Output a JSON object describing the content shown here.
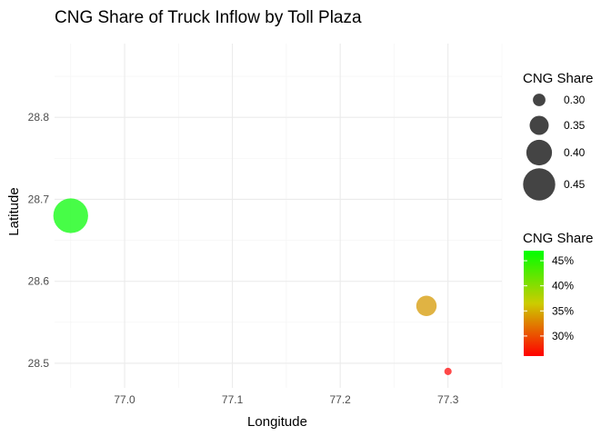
{
  "chart_data": {
    "type": "scatter",
    "title": "CNG Share of Truck Inflow by Toll Plaza",
    "xlabel": "Longitude",
    "ylabel": "Latitude",
    "xlim": [
      76.935,
      77.35
    ],
    "ylim": [
      28.47,
      28.89
    ],
    "x_ticks": [
      77.0,
      77.1,
      77.2,
      77.3
    ],
    "x_tick_labels": [
      "77.0",
      "77.1",
      "77.2",
      "77.3"
    ],
    "y_ticks": [
      28.5,
      28.6,
      28.7,
      28.8
    ],
    "y_tick_labels": [
      "28.5",
      "28.6",
      "28.7",
      "28.8"
    ],
    "grid": true,
    "points": [
      {
        "x": 76.95,
        "y": 28.68,
        "cng_share": 0.47,
        "color": "#1efd1e"
      },
      {
        "x": 77.28,
        "y": 28.57,
        "cng_share": 0.36,
        "color": "#d9a21a"
      },
      {
        "x": 77.3,
        "y": 28.49,
        "cng_share": 0.26,
        "color": "#ff2020"
      }
    ],
    "size_legend": {
      "title": "CNG Share",
      "values": [
        0.3,
        0.35,
        0.4,
        0.45
      ],
      "labels": [
        "0.30",
        "0.35",
        "0.40",
        "0.45"
      ],
      "placement": "right"
    },
    "color_legend": {
      "title": "CNG Share",
      "range": [
        0.26,
        0.47
      ],
      "breaks": [
        0.3,
        0.35,
        0.4,
        0.45
      ],
      "labels": [
        "30%",
        "35%",
        "40%",
        "45%"
      ],
      "low_color": "#ff0000",
      "mid_color": "#cccc00",
      "high_color": "#00ff00",
      "placement": "right"
    },
    "colors": {
      "gridline": "#ebebeb",
      "legend_key": "#444444"
    }
  }
}
